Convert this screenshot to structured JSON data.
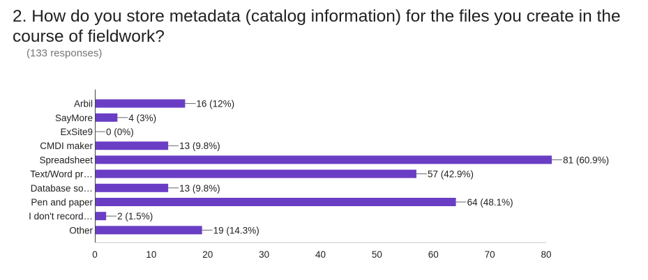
{
  "question": {
    "title": "2. How do you store metadata (catalog information) for the files you create in the course of fieldwork?",
    "responses": "(133 responses)"
  },
  "colors": {
    "bar": "#6a3ec4",
    "text": "#212121",
    "muted": "#757575",
    "axis": "#444444",
    "leader": "#666666"
  },
  "chart_data": {
    "type": "bar",
    "orientation": "horizontal",
    "categories": [
      "Arbil",
      "SayMore",
      "ExSite9",
      "CMDI maker",
      "Spreadsheet",
      "Text/Word pr…",
      "Database so…",
      "Pen and paper",
      "I don't record…",
      "Other"
    ],
    "values": [
      16,
      4,
      0,
      13,
      81,
      57,
      13,
      64,
      2,
      19
    ],
    "data_labels": [
      "16 (12%)",
      "4 (3%)",
      "0 (0%)",
      "13 (9.8%)",
      "81 (60.9%)",
      "57 (42.9%)",
      "13 (9.8%)",
      "64 (48.1%)",
      "2 (1.5%)",
      "19 (14.3%)"
    ],
    "xlim": [
      0,
      80
    ],
    "xticks": [
      "0",
      "10",
      "20",
      "30",
      "40",
      "50",
      "60",
      "70",
      "80"
    ],
    "grid": false
  }
}
